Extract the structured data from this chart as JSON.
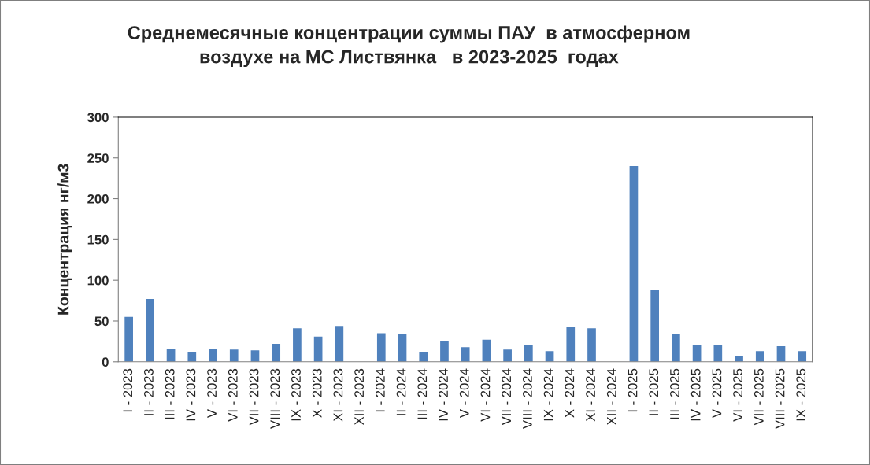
{
  "chart_data": {
    "type": "bar",
    "title": "Среднемесячные концентрации суммы ПАУ  в атмосферном\nвоздухе на МС Листвянка   в 2023-2025  годах",
    "ylabel": "Концентрация нг/м3",
    "categories": [
      "I - 2023",
      "II - 2023",
      "III - 2023",
      "IV - 2023",
      "V - 2023",
      "VI - 2023",
      "VII - 2023",
      "VIII - 2023",
      "IX - 2023",
      "X - 2023",
      "XI - 2023",
      "XII - 2023",
      "I - 2024",
      "II - 2024",
      "III - 2024",
      "IV - 2024",
      "V - 2024",
      "VI - 2024",
      "VII - 2024",
      "VIII - 2024",
      "IX - 2024",
      "X - 2024",
      "XI - 2024",
      "XII - 2024",
      "I - 2025",
      "II - 2025",
      "III - 2025",
      "IV - 2025",
      "V - 2025",
      "VI - 2025",
      "VII - 2025",
      "VIII - 2025",
      "IX - 2025"
    ],
    "values": [
      55,
      77,
      16,
      12,
      16,
      15,
      14,
      22,
      41,
      31,
      44,
      null,
      35,
      34,
      12,
      25,
      18,
      27,
      15,
      20,
      13,
      43,
      41,
      null,
      240,
      88,
      34,
      21,
      20,
      7,
      13,
      19,
      13
    ],
    "color": "#4f81bd",
    "ylim": [
      0,
      300
    ],
    "yticks": [
      0,
      50,
      100,
      150,
      200,
      250,
      300
    ],
    "grid": false,
    "legend": false
  }
}
